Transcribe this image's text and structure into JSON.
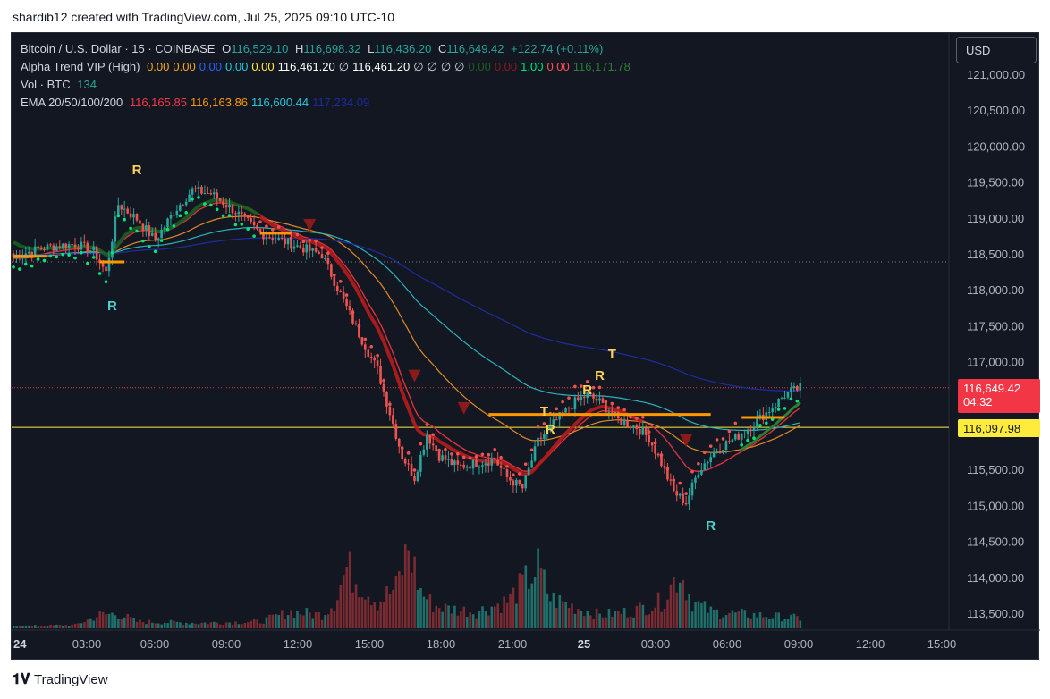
{
  "header": {
    "caption": "shardib12 created with TradingView.com, Jul 25, 2025 09:10 UTC-10"
  },
  "legend": {
    "symbol": "Bitcoin / U.S. Dollar · 15 · COINBASE",
    "o_label": "O",
    "o_value": "116,529.10",
    "h_label": "H",
    "h_value": "116,698.32",
    "l_label": "L",
    "l_value": "116,436.20",
    "c_label": "C",
    "c_value": "116,649.42",
    "change": "+122.74 (+0.11%)",
    "alpha_name": "Alpha Trend VIP (High)",
    "alpha_values": [
      {
        "text": "0.00",
        "color": "#f5a623"
      },
      {
        "text": "0.00",
        "color": "#f5a623"
      },
      {
        "text": "0.00",
        "color": "#2962ff"
      },
      {
        "text": "0.00",
        "color": "#26c6da"
      },
      {
        "text": "0.00",
        "color": "#ffeb3b"
      },
      {
        "text": "116,461.20",
        "color": "#ffffff"
      },
      {
        "text": "∅",
        "color": "#d1d4dc"
      },
      {
        "text": "116,461.20",
        "color": "#ffffff"
      },
      {
        "text": "∅",
        "color": "#d1d4dc"
      },
      {
        "text": "∅",
        "color": "#d1d4dc"
      },
      {
        "text": "∅",
        "color": "#d1d4dc"
      },
      {
        "text": "∅",
        "color": "#d1d4dc"
      },
      {
        "text": "0.00",
        "color": "#1b5e20"
      },
      {
        "text": "0.00",
        "color": "#8b1a1a"
      },
      {
        "text": "1.00",
        "color": "#00e676"
      },
      {
        "text": "0.00",
        "color": "#ff5252"
      },
      {
        "text": "116,171.78",
        "color": "#2e7d32"
      }
    ],
    "vol_name": "Vol · BTC",
    "vol_value": "134",
    "ema_name": "EMA 20/50/100/200",
    "ema_values": [
      {
        "text": "116,165.85",
        "color": "#f23645"
      },
      {
        "text": "116,163.86",
        "color": "#ff9800"
      },
      {
        "text": "116,600.44",
        "color": "#26c6da"
      },
      {
        "text": "117,234.09",
        "color": "#1e2a9e"
      }
    ]
  },
  "price_axis": {
    "currency_button": "USD",
    "ticks": [
      "121,000.00",
      "120,500.00",
      "120,000.00",
      "119,500.00",
      "119,000.00",
      "118,500.00",
      "118,000.00",
      "117,500.00",
      "117,000.00",
      "115,500.00",
      "115,000.00",
      "114,500.00",
      "114,000.00",
      "113,500.00"
    ],
    "current_price": "116,649.42",
    "countdown": "04:32",
    "level_price": "116,097.98"
  },
  "time_axis": {
    "ticks": [
      "24",
      "03:00",
      "06:00",
      "09:00",
      "12:00",
      "15:00",
      "18:00",
      "21:00",
      "25",
      "03:00",
      "06:00",
      "09:00",
      "12:00",
      "15:00"
    ]
  },
  "signals": [
    {
      "text": "R",
      "color": "#ffd54f"
    },
    {
      "text": "R",
      "color": "#4dd0c9"
    },
    {
      "text": "T",
      "color": "#ffd54f"
    },
    {
      "text": "R",
      "color": "#ffd54f"
    },
    {
      "text": "R",
      "color": "#ffd54f"
    },
    {
      "text": "T",
      "color": "#ffd54f"
    },
    {
      "text": "R",
      "color": "#ffd54f"
    },
    {
      "text": "R",
      "color": "#4dd0c9"
    }
  ],
  "chart_data": {
    "type": "candlestick",
    "symbol": "BTCUSD",
    "interval": "15",
    "ylim": [
      113300,
      121300
    ],
    "ema_series_names": [
      "EMA 20",
      "EMA 50",
      "EMA 100",
      "EMA 200"
    ],
    "ema_colors": [
      "#d9323f",
      "#e08a28",
      "#2ab2b8",
      "#1f2ca0"
    ],
    "key_levels": {
      "current": 116649.42,
      "horizontal_level": 116097.98,
      "dotted_level": 118400
    },
    "path_anchors_price": [
      [
        0,
        118480
      ],
      [
        10,
        118600
      ],
      [
        20,
        118650
      ],
      [
        26,
        118550
      ],
      [
        30,
        118250
      ],
      [
        34,
        119200
      ],
      [
        40,
        119000
      ],
      [
        46,
        118700
      ],
      [
        52,
        119100
      ],
      [
        58,
        119400
      ],
      [
        64,
        119350
      ],
      [
        72,
        119100
      ],
      [
        80,
        118800
      ],
      [
        90,
        118650
      ],
      [
        100,
        118500
      ],
      [
        106,
        117950
      ],
      [
        112,
        117400
      ],
      [
        118,
        116900
      ],
      [
        122,
        116300
      ],
      [
        126,
        115700
      ],
      [
        130,
        115400
      ],
      [
        134,
        116000
      ],
      [
        138,
        115700
      ],
      [
        144,
        115550
      ],
      [
        150,
        115600
      ],
      [
        156,
        115650
      ],
      [
        160,
        115400
      ],
      [
        165,
        115250
      ],
      [
        170,
        115900
      ],
      [
        176,
        116200
      ],
      [
        182,
        116450
      ],
      [
        186,
        116550
      ],
      [
        190,
        116450
      ],
      [
        196,
        116200
      ],
      [
        202,
        116100
      ],
      [
        206,
        115950
      ],
      [
        210,
        115600
      ],
      [
        214,
        115200
      ],
      [
        218,
        115050
      ],
      [
        222,
        115500
      ],
      [
        228,
        115800
      ],
      [
        234,
        115950
      ],
      [
        240,
        116150
      ],
      [
        246,
        116380
      ],
      [
        250,
        116550
      ],
      [
        255,
        116649
      ]
    ],
    "volume_profile": [
      [
        0,
        3
      ],
      [
        20,
        5
      ],
      [
        28,
        20
      ],
      [
        34,
        22
      ],
      [
        40,
        10
      ],
      [
        60,
        8
      ],
      [
        80,
        10
      ],
      [
        90,
        25
      ],
      [
        100,
        20
      ],
      [
        104,
        40
      ],
      [
        108,
        90
      ],
      [
        112,
        70
      ],
      [
        118,
        40
      ],
      [
        124,
        60
      ],
      [
        128,
        120
      ],
      [
        132,
        55
      ],
      [
        136,
        35
      ],
      [
        140,
        30
      ],
      [
        150,
        25
      ],
      [
        160,
        40
      ],
      [
        166,
        70
      ],
      [
        170,
        90
      ],
      [
        174,
        45
      ],
      [
        180,
        35
      ],
      [
        190,
        20
      ],
      [
        200,
        25
      ],
      [
        210,
        40
      ],
      [
        216,
        85
      ],
      [
        220,
        40
      ],
      [
        226,
        25
      ],
      [
        240,
        20
      ],
      [
        255,
        15
      ]
    ]
  }
}
